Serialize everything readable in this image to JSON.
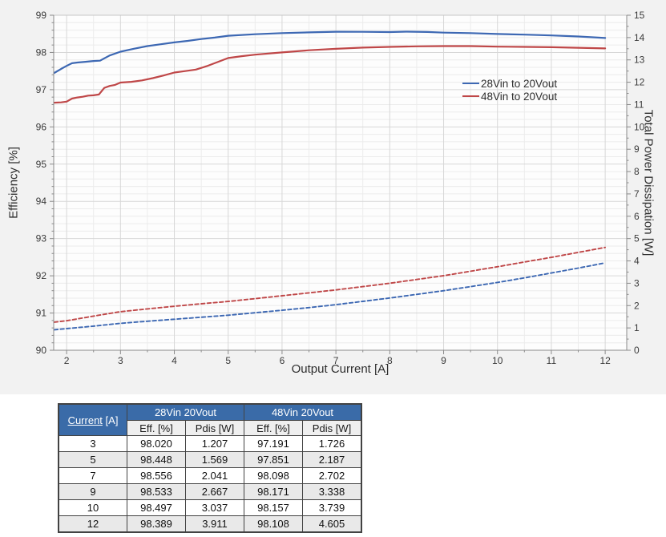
{
  "colors": {
    "figure_background": "#f2f2f2",
    "plot_background": "#fdfdfd",
    "grid_major": "#d7d7d7",
    "grid_minor": "#ececec",
    "axis_line": "#8a8a8a",
    "plot_border": "#c6c6c6",
    "tick_text": "#3a3a3a",
    "series_blue": "#3d68b3",
    "series_red": "#bf4748",
    "table_header_bg": "#3a6ba8",
    "table_subheader_bg": "#efefef",
    "table_stripe_bg": "#e9e9e9",
    "table_border": "#424242"
  },
  "chart_data": {
    "type": "line",
    "title": "",
    "xlabel": "Output Current [A]",
    "ylabel_left": "Efficiency [%]",
    "ylabel_right": "Total Power Dissipation [W]",
    "xlim": [
      1.76,
      12.4
    ],
    "x_major_ticks": [
      2,
      3,
      4,
      5,
      6,
      7,
      8,
      9,
      10,
      11,
      12
    ],
    "x_minor_step": 0.5,
    "ylim_left": [
      90,
      99
    ],
    "y_left_major_step": 1,
    "y_left_minor_step": 0.2,
    "ylim_right": [
      0,
      15
    ],
    "y_right_major_step": 1,
    "y_right_minor_step": 0.5,
    "grid": true,
    "legend_position": "inside-upper-right",
    "legend": [
      {
        "label": "28Vin to 20Vout",
        "color": "#3d68b3"
      },
      {
        "label": "48Vin to 20Vout",
        "color": "#bf4748"
      }
    ],
    "series": [
      {
        "name": "28Vin to 20Vout - Efficiency",
        "axis": "left",
        "style": "solid",
        "color": "#3d68b3",
        "points": [
          [
            1.77,
            97.45
          ],
          [
            1.9,
            97.56
          ],
          [
            2.0,
            97.64
          ],
          [
            2.1,
            97.71
          ],
          [
            2.2,
            97.73
          ],
          [
            2.35,
            97.75
          ],
          [
            2.5,
            97.77
          ],
          [
            2.62,
            97.78
          ],
          [
            2.8,
            97.92
          ],
          [
            3.0,
            98.02
          ],
          [
            3.25,
            98.1
          ],
          [
            3.5,
            98.17
          ],
          [
            3.75,
            98.22
          ],
          [
            4.0,
            98.27
          ],
          [
            4.25,
            98.31
          ],
          [
            4.5,
            98.36
          ],
          [
            4.75,
            98.4
          ],
          [
            5.0,
            98.448
          ],
          [
            5.5,
            98.49
          ],
          [
            6.0,
            98.52
          ],
          [
            6.5,
            98.54
          ],
          [
            7.0,
            98.556
          ],
          [
            7.5,
            98.555
          ],
          [
            8.0,
            98.548
          ],
          [
            8.3,
            98.558
          ],
          [
            8.7,
            98.55
          ],
          [
            9.0,
            98.533
          ],
          [
            9.5,
            98.52
          ],
          [
            10.0,
            98.497
          ],
          [
            10.5,
            98.478
          ],
          [
            11.0,
            98.458
          ],
          [
            11.5,
            98.43
          ],
          [
            12.0,
            98.389
          ]
        ]
      },
      {
        "name": "48Vin to 20Vout - Efficiency",
        "axis": "left",
        "style": "solid",
        "color": "#bf4748",
        "points": [
          [
            1.77,
            96.65
          ],
          [
            1.9,
            96.66
          ],
          [
            2.0,
            96.68
          ],
          [
            2.1,
            96.76
          ],
          [
            2.2,
            96.79
          ],
          [
            2.3,
            96.81
          ],
          [
            2.4,
            96.84
          ],
          [
            2.5,
            96.85
          ],
          [
            2.6,
            96.87
          ],
          [
            2.7,
            97.05
          ],
          [
            2.8,
            97.1
          ],
          [
            2.9,
            97.13
          ],
          [
            3.0,
            97.191
          ],
          [
            3.2,
            97.21
          ],
          [
            3.4,
            97.25
          ],
          [
            3.6,
            97.31
          ],
          [
            3.8,
            97.38
          ],
          [
            4.0,
            97.46
          ],
          [
            4.2,
            97.5
          ],
          [
            4.4,
            97.54
          ],
          [
            4.6,
            97.63
          ],
          [
            4.8,
            97.74
          ],
          [
            5.0,
            97.851
          ],
          [
            5.25,
            97.9
          ],
          [
            5.5,
            97.94
          ],
          [
            6.0,
            98.0
          ],
          [
            6.5,
            98.06
          ],
          [
            7.0,
            98.098
          ],
          [
            7.5,
            98.13
          ],
          [
            8.0,
            98.15
          ],
          [
            8.5,
            98.165
          ],
          [
            9.0,
            98.171
          ],
          [
            9.5,
            98.17
          ],
          [
            10.0,
            98.157
          ],
          [
            10.5,
            98.15
          ],
          [
            11.0,
            98.14
          ],
          [
            11.5,
            98.125
          ],
          [
            12.0,
            98.108
          ]
        ]
      },
      {
        "name": "28Vin to 20Vout - Power Dissipation",
        "axis": "right",
        "style": "dashed",
        "color": "#3d68b3",
        "points": [
          [
            1.77,
            0.92
          ],
          [
            2.0,
            0.97
          ],
          [
            2.5,
            1.08
          ],
          [
            3.0,
            1.207
          ],
          [
            3.5,
            1.3
          ],
          [
            4.0,
            1.39
          ],
          [
            4.5,
            1.48
          ],
          [
            5.0,
            1.569
          ],
          [
            5.5,
            1.68
          ],
          [
            6.0,
            1.79
          ],
          [
            6.5,
            1.91
          ],
          [
            7.0,
            2.041
          ],
          [
            7.5,
            2.19
          ],
          [
            8.0,
            2.34
          ],
          [
            8.5,
            2.5
          ],
          [
            9.0,
            2.667
          ],
          [
            9.5,
            2.85
          ],
          [
            10.0,
            3.037
          ],
          [
            10.5,
            3.24
          ],
          [
            11.0,
            3.46
          ],
          [
            11.5,
            3.68
          ],
          [
            12.0,
            3.911
          ]
        ]
      },
      {
        "name": "48Vin to 20Vout - Power Dissipation",
        "axis": "right",
        "style": "dashed",
        "color": "#bf4748",
        "points": [
          [
            1.77,
            1.26
          ],
          [
            2.0,
            1.32
          ],
          [
            2.5,
            1.53
          ],
          [
            3.0,
            1.726
          ],
          [
            3.5,
            1.85
          ],
          [
            4.0,
            1.97
          ],
          [
            4.5,
            2.08
          ],
          [
            5.0,
            2.187
          ],
          [
            5.5,
            2.31
          ],
          [
            6.0,
            2.44
          ],
          [
            6.5,
            2.57
          ],
          [
            7.0,
            2.702
          ],
          [
            7.5,
            2.85
          ],
          [
            8.0,
            3.0
          ],
          [
            8.5,
            3.17
          ],
          [
            9.0,
            3.338
          ],
          [
            9.5,
            3.54
          ],
          [
            10.0,
            3.739
          ],
          [
            10.5,
            3.95
          ],
          [
            11.0,
            4.16
          ],
          [
            11.5,
            4.38
          ],
          [
            12.0,
            4.605
          ]
        ]
      }
    ]
  },
  "table": {
    "corner": {
      "underlined": "Current",
      "rest": " [A]"
    },
    "groups": [
      {
        "label": "28Vin 20Vout",
        "subcols": [
          "Eff. [%]",
          "Pdis [W]"
        ]
      },
      {
        "label": "48Vin 20Vout",
        "subcols": [
          "Eff. [%]",
          "Pdis [W]"
        ]
      }
    ],
    "rows": [
      {
        "current": "3",
        "values": [
          "98.020",
          "1.207",
          "97.191",
          "1.726"
        ]
      },
      {
        "current": "5",
        "values": [
          "98.448",
          "1.569",
          "97.851",
          "2.187"
        ]
      },
      {
        "current": "7",
        "values": [
          "98.556",
          "2.041",
          "98.098",
          "2.702"
        ]
      },
      {
        "current": "9",
        "values": [
          "98.533",
          "2.667",
          "98.171",
          "3.338"
        ]
      },
      {
        "current": "10",
        "values": [
          "98.497",
          "3.037",
          "98.157",
          "3.739"
        ]
      },
      {
        "current": "12",
        "values": [
          "98.389",
          "3.911",
          "98.108",
          "4.605"
        ]
      }
    ]
  }
}
